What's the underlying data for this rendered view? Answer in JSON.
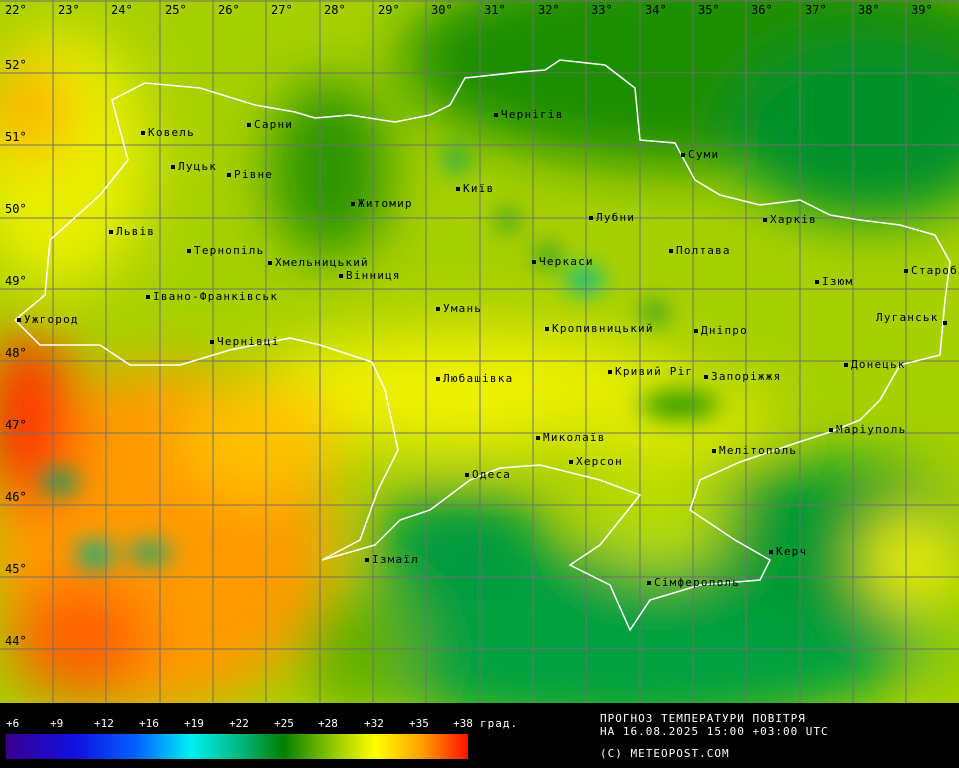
{
  "map": {
    "longitudes": [
      "22°",
      "23°",
      "24°",
      "25°",
      "26°",
      "27°",
      "28°",
      "29°",
      "30°",
      "31°",
      "32°",
      "33°",
      "34°",
      "35°",
      "36°",
      "37°",
      "38°",
      "39°"
    ],
    "latitudes": [
      "52°",
      "51°",
      "50°",
      "49°",
      "48°",
      "47°",
      "46°",
      "45°",
      "44°"
    ],
    "cities": [
      "Ковель",
      "Сарни",
      "Чернігів",
      "Суми",
      "Луцьк",
      "Рівне",
      "Київ",
      "Житомир",
      "Лубни",
      "Харків",
      "Львів",
      "Тернопіль",
      "Хмельницький",
      "Полтава",
      "Черкаси",
      "Вінниця",
      "Ізюм",
      "Старобі",
      "Івано-Франківськ",
      "Умань",
      "Луганськ",
      "Ужгород",
      "Кропивницький",
      "Дніпро",
      "Чернівці",
      "Донецьк",
      "Кривий Ріг",
      "Запоріжжя",
      "Любашівка",
      "Маріуполь",
      "Миколаїв",
      "Мелітополь",
      "Херсон",
      "Одеса",
      "Керч",
      "Ізмаїл",
      "Сімферополь"
    ],
    "border_color": "#ffffff",
    "grid_color": "#707070"
  },
  "legend": {
    "ticks": [
      "+6",
      "+9",
      "+12",
      "+16",
      "+19",
      "+22",
      "+25",
      "+28",
      "+32",
      "+35",
      "+38"
    ],
    "unit": "град.",
    "colors": [
      "#3a0090",
      "#1010e0",
      "#0060ff",
      "#00f0f0",
      "#00b070",
      "#008000",
      "#a0d000",
      "#ffff00",
      "#ffa000",
      "#ff1000"
    ]
  },
  "info": {
    "title": "ПРОГНОЗ ТЕМПЕРАТУРИ ПОВІТРЯ",
    "datetime": "НА 16.08.2025 15:00 +03:00 UTC",
    "copyright": "(C) METEOPOST.COM"
  }
}
